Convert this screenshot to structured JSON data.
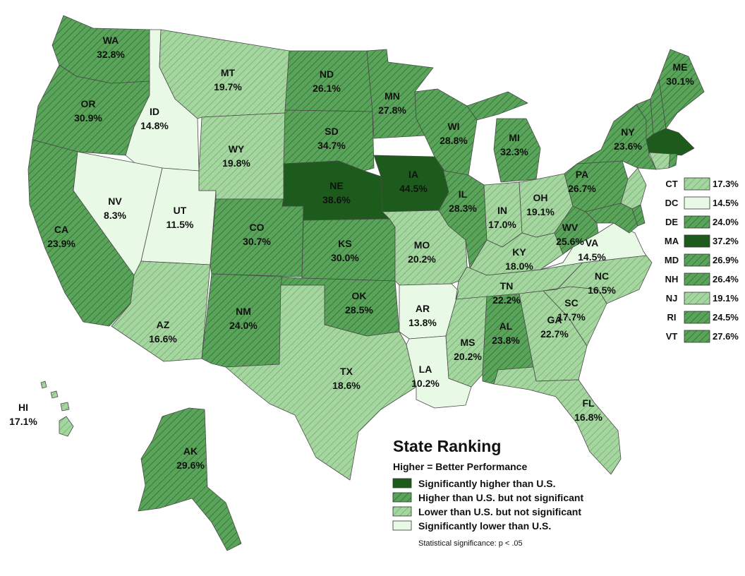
{
  "colors": {
    "sig_higher": "#1d5b1d",
    "higher_ns": "#5aa35a",
    "lower_ns": "#a5d6a0",
    "sig_lower": "#e8f9e6"
  },
  "states": [
    {
      "abbr": "WA",
      "value": "32.8%",
      "cat": "higher_ns"
    },
    {
      "abbr": "OR",
      "value": "30.9%",
      "cat": "higher_ns"
    },
    {
      "abbr": "CA",
      "value": "23.9%",
      "cat": "higher_ns"
    },
    {
      "abbr": "ID",
      "value": "14.8%",
      "cat": "sig_lower"
    },
    {
      "abbr": "NV",
      "value": "8.3%",
      "cat": "sig_lower"
    },
    {
      "abbr": "UT",
      "value": "11.5%",
      "cat": "sig_lower"
    },
    {
      "abbr": "AZ",
      "value": "16.6%",
      "cat": "lower_ns"
    },
    {
      "abbr": "MT",
      "value": "19.7%",
      "cat": "lower_ns"
    },
    {
      "abbr": "WY",
      "value": "19.8%",
      "cat": "lower_ns"
    },
    {
      "abbr": "CO",
      "value": "30.7%",
      "cat": "higher_ns"
    },
    {
      "abbr": "NM",
      "value": "24.0%",
      "cat": "higher_ns"
    },
    {
      "abbr": "ND",
      "value": "26.1%",
      "cat": "higher_ns"
    },
    {
      "abbr": "SD",
      "value": "34.7%",
      "cat": "higher_ns"
    },
    {
      "abbr": "NE",
      "value": "38.6%",
      "cat": "sig_higher"
    },
    {
      "abbr": "KS",
      "value": "30.0%",
      "cat": "higher_ns"
    },
    {
      "abbr": "OK",
      "value": "28.5%",
      "cat": "higher_ns"
    },
    {
      "abbr": "TX",
      "value": "18.6%",
      "cat": "lower_ns"
    },
    {
      "abbr": "MN",
      "value": "27.8%",
      "cat": "higher_ns"
    },
    {
      "abbr": "IA",
      "value": "44.5%",
      "cat": "sig_higher"
    },
    {
      "abbr": "MO",
      "value": "20.2%",
      "cat": "lower_ns"
    },
    {
      "abbr": "AR",
      "value": "13.8%",
      "cat": "sig_lower"
    },
    {
      "abbr": "LA",
      "value": "10.2%",
      "cat": "sig_lower"
    },
    {
      "abbr": "WI",
      "value": "28.8%",
      "cat": "higher_ns"
    },
    {
      "abbr": "IL",
      "value": "28.3%",
      "cat": "higher_ns"
    },
    {
      "abbr": "MI",
      "value": "32.3%",
      "cat": "higher_ns"
    },
    {
      "abbr": "IN",
      "value": "17.0%",
      "cat": "lower_ns"
    },
    {
      "abbr": "OH",
      "value": "19.1%",
      "cat": "lower_ns"
    },
    {
      "abbr": "KY",
      "value": "18.0%",
      "cat": "lower_ns"
    },
    {
      "abbr": "TN",
      "value": "22.2%",
      "cat": "lower_ns"
    },
    {
      "abbr": "MS",
      "value": "20.2%",
      "cat": "lower_ns"
    },
    {
      "abbr": "AL",
      "value": "23.8%",
      "cat": "higher_ns"
    },
    {
      "abbr": "GA",
      "value": "22.7%",
      "cat": "lower_ns"
    },
    {
      "abbr": "FL",
      "value": "16.8%",
      "cat": "lower_ns"
    },
    {
      "abbr": "SC",
      "value": "17.7%",
      "cat": "lower_ns"
    },
    {
      "abbr": "NC",
      "value": "16.5%",
      "cat": "lower_ns"
    },
    {
      "abbr": "VA",
      "value": "14.5%",
      "cat": "sig_lower"
    },
    {
      "abbr": "WV",
      "value": "25.6%",
      "cat": "higher_ns"
    },
    {
      "abbr": "PA",
      "value": "26.7%",
      "cat": "higher_ns"
    },
    {
      "abbr": "NY",
      "value": "23.6%",
      "cat": "higher_ns"
    },
    {
      "abbr": "ME",
      "value": "30.1%",
      "cat": "higher_ns"
    },
    {
      "abbr": "AK",
      "value": "29.6%",
      "cat": "higher_ns"
    },
    {
      "abbr": "HI",
      "value": "17.1%",
      "cat": "lower_ns"
    }
  ],
  "small_states": [
    {
      "abbr": "CT",
      "value": "17.3%",
      "cat": "lower_ns"
    },
    {
      "abbr": "DC",
      "value": "14.5%",
      "cat": "sig_lower"
    },
    {
      "abbr": "DE",
      "value": "24.0%",
      "cat": "higher_ns"
    },
    {
      "abbr": "MA",
      "value": "37.2%",
      "cat": "sig_higher"
    },
    {
      "abbr": "MD",
      "value": "26.9%",
      "cat": "higher_ns"
    },
    {
      "abbr": "NH",
      "value": "26.4%",
      "cat": "higher_ns"
    },
    {
      "abbr": "NJ",
      "value": "19.1%",
      "cat": "lower_ns"
    },
    {
      "abbr": "RI",
      "value": "24.5%",
      "cat": "higher_ns"
    },
    {
      "abbr": "VT",
      "value": "27.6%",
      "cat": "higher_ns"
    }
  ],
  "legend": {
    "title": "State Ranking",
    "subtitle": "Higher = Better Performance",
    "items": [
      {
        "label": "Significantly higher than U.S.",
        "cat": "sig_higher"
      },
      {
        "label": "Higher than U.S. but not significant",
        "cat": "higher_ns"
      },
      {
        "label": "Lower than U.S. but not significant",
        "cat": "lower_ns"
      },
      {
        "label": "Significantly lower than U.S.",
        "cat": "sig_lower"
      }
    ],
    "note": "Statistical significance: p < .05"
  }
}
